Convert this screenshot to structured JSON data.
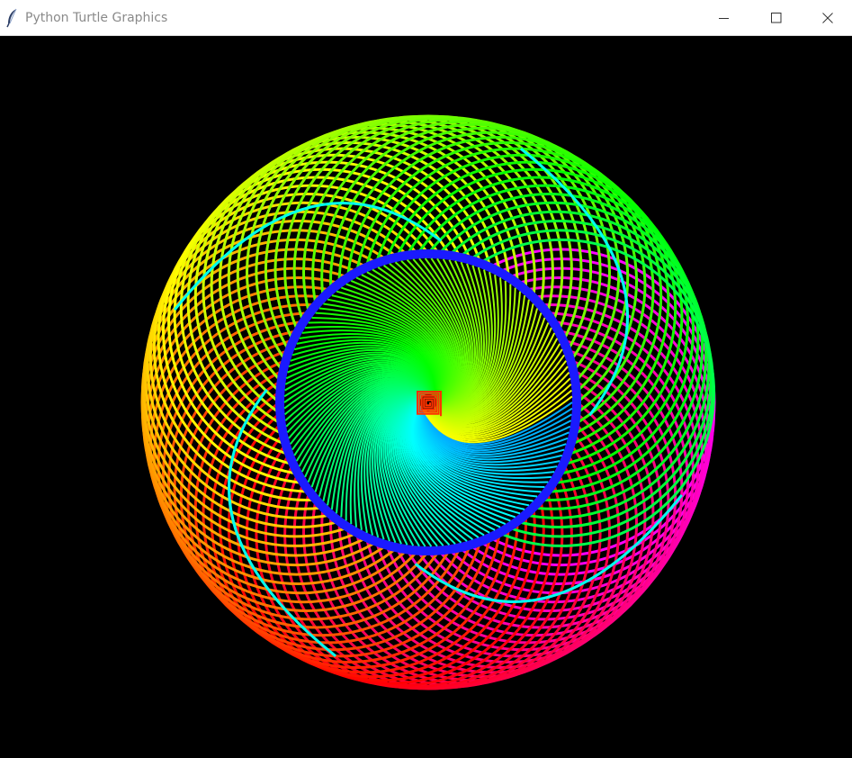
{
  "window": {
    "title": "Python Turtle Graphics",
    "icon": "feather-icon"
  },
  "title_bar_controls": [
    {
      "name": "minimize-button",
      "icon": "minimize-icon"
    },
    {
      "name": "maximize-button",
      "icon": "maximize-icon"
    },
    {
      "name": "close-button",
      "icon": "close-icon"
    }
  ],
  "canvas": {
    "background": "#000000",
    "palette": [
      "#ff0000",
      "#ff8000",
      "#ffff00",
      "#00ff00",
      "#00ffff",
      "#0000ff",
      "#ff00ff"
    ]
  }
}
